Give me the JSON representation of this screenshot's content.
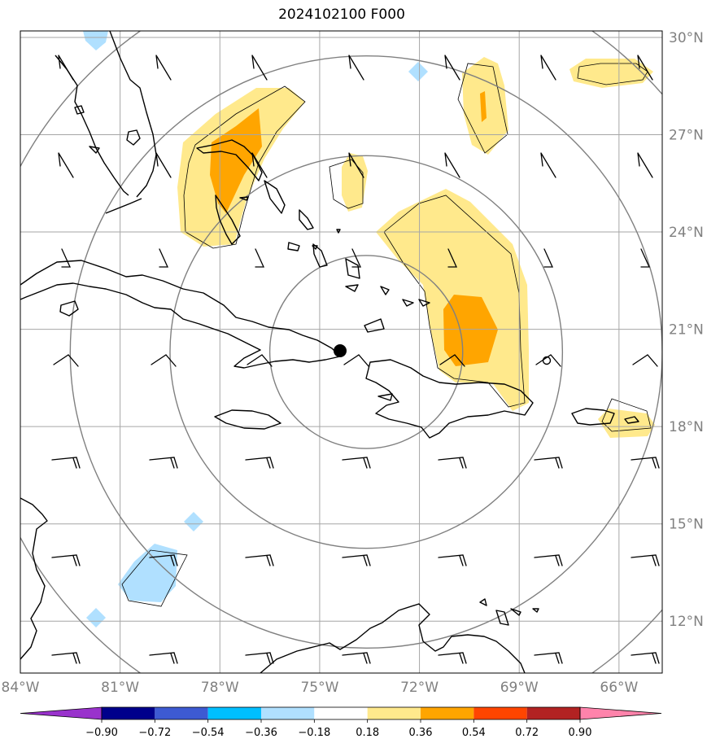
{
  "title": "2024102100 F000",
  "map": {
    "lon_range": [
      -84,
      -64.7
    ],
    "lat_range": [
      10.4,
      30.2
    ],
    "grid": true,
    "lon_ticks": [
      {
        "value": -84,
        "label": "84°W"
      },
      {
        "value": -81,
        "label": "81°W"
      },
      {
        "value": -78,
        "label": "78°W"
      },
      {
        "value": -75,
        "label": "75°W"
      },
      {
        "value": -72,
        "label": "72°W"
      },
      {
        "value": -69,
        "label": "69°W"
      },
      {
        "value": -66,
        "label": "66°W"
      }
    ],
    "lat_ticks": [
      {
        "value": 30,
        "label": "30°N"
      },
      {
        "value": 27,
        "label": "27°N"
      },
      {
        "value": 24,
        "label": "24°N"
      },
      {
        "value": 21,
        "label": "21°N"
      },
      {
        "value": 18,
        "label": "18°N"
      },
      {
        "value": 15,
        "label": "15°N"
      },
      {
        "value": 12,
        "label": "12°N"
      }
    ],
    "storm_center": {
      "lon": -73.6,
      "lat": 20.3
    },
    "range_ring_radii_deg": [
      2.9,
      5.9,
      8.9,
      11.8
    ]
  },
  "colorbar": {
    "colors": [
      "#9932cc",
      "#00008b",
      "#3d5ad2",
      "#00bfff",
      "#b0e0ff",
      "#ffffff",
      "#ffe98c",
      "#ffa500",
      "#ff4500",
      "#b22222",
      "#ff83ab"
    ],
    "ticks": [
      "−0.90",
      "−0.72",
      "−0.54",
      "−0.36",
      "−0.18",
      "0.18",
      "0.36",
      "0.54",
      "0.72",
      "0.90"
    ]
  }
}
